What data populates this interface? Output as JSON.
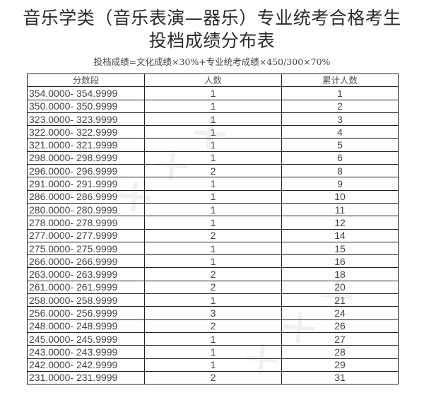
{
  "title_line1": "音乐学类（音乐表演—器乐）专业统考合格考生",
  "title_line2": "投档成绩分布表",
  "formula": "投档成绩=文化成绩×30%+专业统考成绩×450/300×70%",
  "table": {
    "headers": [
      "分数段",
      "人数",
      "累计人数"
    ],
    "rows": [
      [
        "354.0000- 354.9999",
        "1",
        "1"
      ],
      [
        "350.0000- 350.9999",
        "1",
        "2"
      ],
      [
        "323.0000- 323.9999",
        "1",
        "3"
      ],
      [
        "322.0000- 322.9999",
        "1",
        "4"
      ],
      [
        "321.0000- 321.9999",
        "1",
        "5"
      ],
      [
        "298.0000- 298.9999",
        "1",
        "6"
      ],
      [
        "296.0000- 296.9999",
        "2",
        "8"
      ],
      [
        "291.0000- 291.9999",
        "1",
        "9"
      ],
      [
        "286.0000- 286.9999",
        "1",
        "10"
      ],
      [
        "280.0000- 280.9999",
        "1",
        "11"
      ],
      [
        "278.0000- 278.9999",
        "1",
        "12"
      ],
      [
        "277.0000- 277.9999",
        "2",
        "14"
      ],
      [
        "275.0000- 275.9999",
        "1",
        "15"
      ],
      [
        "266.0000- 266.9999",
        "1",
        "16"
      ],
      [
        "263.0000- 263.9999",
        "2",
        "18"
      ],
      [
        "261.0000- 261.9999",
        "2",
        "20"
      ],
      [
        "258.0000- 258.9999",
        "1",
        "21"
      ],
      [
        "256.0000- 256.9999",
        "3",
        "24"
      ],
      [
        "248.0000- 248.9999",
        "2",
        "26"
      ],
      [
        "245.0000- 245.9999",
        "1",
        "27"
      ],
      [
        "243.0000- 243.9999",
        "1",
        "28"
      ],
      [
        "242.0000- 242.9999",
        "1",
        "29"
      ],
      [
        "231.0000- 231.9999",
        "2",
        "31"
      ]
    ]
  }
}
